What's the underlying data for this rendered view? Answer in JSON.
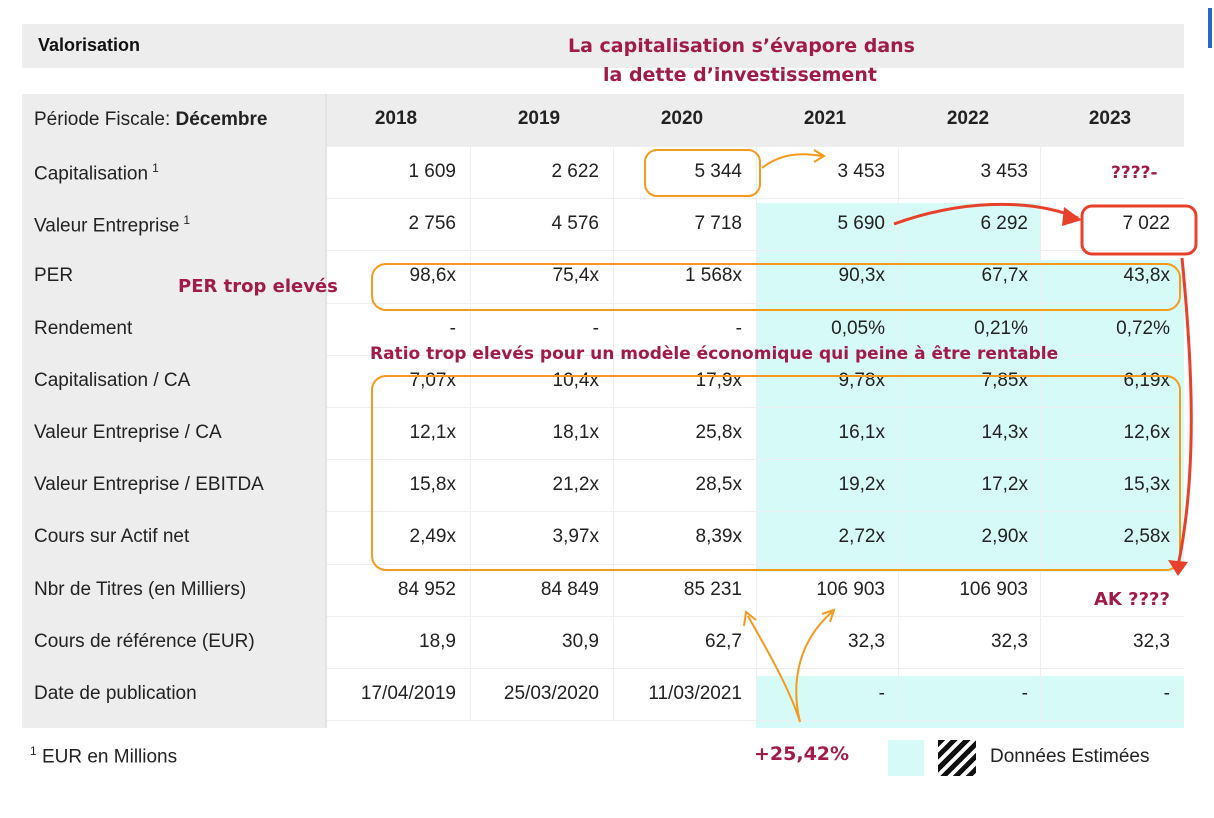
{
  "title": "Valorisation",
  "annotations": {
    "top_line1": "La capitalisation s’évapore dans",
    "top_line2": "la dette d’investissement",
    "per": "PER trop elevés",
    "ratio": "Ratio trop elevés pour un modèle économique qui peine à être rentable",
    "cap_2023": "????-",
    "ak": "AK ????",
    "growth": "+25,42%"
  },
  "header": {
    "period_label": "Période Fiscale: ",
    "period_value": "Décembre",
    "years": [
      "2018",
      "2019",
      "2020",
      "2021",
      "2022",
      "2023"
    ]
  },
  "rows": [
    {
      "label": "Capitalisation",
      "sup": "1",
      "values": [
        "1 609",
        "2 622",
        "5 344",
        "3 453",
        "3 453",
        ""
      ]
    },
    {
      "label": "Valeur Entreprise",
      "sup": "1",
      "values": [
        "2 756",
        "4 576",
        "7 718",
        "5 690",
        "6 292",
        "7 022"
      ]
    },
    {
      "label": "PER",
      "sup": "",
      "values": [
        "98,6x",
        "75,4x",
        "1 568x",
        "90,3x",
        "67,7x",
        "43,8x"
      ]
    },
    {
      "label": "Rendement",
      "sup": "",
      "values": [
        "-",
        "-",
        "-",
        "0,05%",
        "0,21%",
        "0,72%"
      ]
    },
    {
      "label": "Capitalisation / CA",
      "sup": "",
      "values": [
        "7,07x",
        "10,4x",
        "17,9x",
        "9,78x",
        "7,85x",
        "6,19x"
      ]
    },
    {
      "label": "Valeur Entreprise / CA",
      "sup": "",
      "values": [
        "12,1x",
        "18,1x",
        "25,8x",
        "16,1x",
        "14,3x",
        "12,6x"
      ]
    },
    {
      "label": "Valeur Entreprise / EBITDA",
      "sup": "",
      "values": [
        "15,8x",
        "21,2x",
        "28,5x",
        "19,2x",
        "17,2x",
        "15,3x"
      ]
    },
    {
      "label": "Cours sur Actif net",
      "sup": "",
      "values": [
        "2,49x",
        "3,97x",
        "8,39x",
        "2,72x",
        "2,90x",
        "2,58x"
      ]
    },
    {
      "label": "Nbr de Titres (en Milliers)",
      "sup": "",
      "values": [
        "84 952",
        "84 849",
        "85 231",
        "106 903",
        "106 903",
        ""
      ]
    },
    {
      "label": "Cours de référence (EUR)",
      "sup": "",
      "values": [
        "18,9",
        "30,9",
        "62,7",
        "32,3",
        "32,3",
        "32,3"
      ]
    },
    {
      "label": "Date de publication",
      "sup": "",
      "values": [
        "17/04/2019",
        "25/03/2020",
        "11/03/2021",
        "-",
        "-",
        "-"
      ]
    }
  ],
  "footnote": {
    "sup": "1",
    "text": "EUR en Millions"
  },
  "legend": {
    "estimated_label": "Données Estimées"
  },
  "colors": {
    "estimated_bg": "#d6fbf6",
    "annotation_red": "#a01a4a",
    "annotation_orange": "#f39a1f",
    "arrow_red": "#e8412b"
  }
}
